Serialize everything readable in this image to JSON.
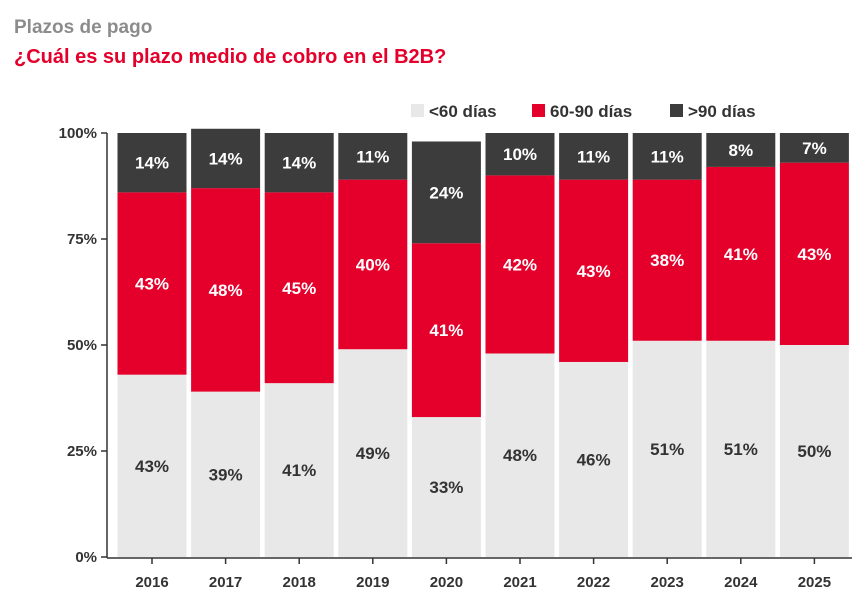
{
  "header": {
    "supertitle": "Plazos de pago",
    "title": "¿Cuál es su plazo medio de cobro en el B2B?"
  },
  "chart_data": {
    "type": "bar",
    "stacked": true,
    "categories": [
      "2016",
      "2017",
      "2018",
      "2019",
      "2020",
      "2021",
      "2022",
      "2023",
      "2024",
      "2025"
    ],
    "series": [
      {
        "name": "<60 días",
        "color": "#e8e8e8",
        "label_color": "#333333",
        "values": [
          43,
          39,
          41,
          49,
          33,
          48,
          46,
          51,
          51,
          50
        ],
        "labels": [
          "43%",
          "39%",
          "41%",
          "49%",
          "33%",
          "48%",
          "46%",
          "51%",
          "51%",
          "50%"
        ]
      },
      {
        "name": "60-90 días",
        "color": "#e4002b",
        "label_color": "#ffffff",
        "values": [
          43,
          48,
          45,
          40,
          41,
          42,
          43,
          38,
          41,
          43
        ],
        "labels": [
          "43%",
          "48%",
          "45%",
          "40%",
          "41%",
          "42%",
          "43%",
          "38%",
          "41%",
          "43%"
        ]
      },
      {
        "name": ">90 días",
        "color": "#3c3c3c",
        "label_color": "#ffffff",
        "values": [
          14,
          14,
          14,
          11,
          24,
          10,
          11,
          11,
          8,
          7
        ],
        "labels": [
          "14%",
          "14%",
          "14%",
          "11%",
          "24%",
          "10%",
          "11%",
          "11%",
          "8%",
          "7%"
        ]
      }
    ],
    "y_ticks": [
      0,
      25,
      50,
      75,
      100
    ],
    "y_tick_labels": [
      "0%",
      "25%",
      "50%",
      "75%",
      "100%"
    ],
    "ylim": [
      0,
      100
    ],
    "grid": false,
    "legend_position": "top-right"
  }
}
